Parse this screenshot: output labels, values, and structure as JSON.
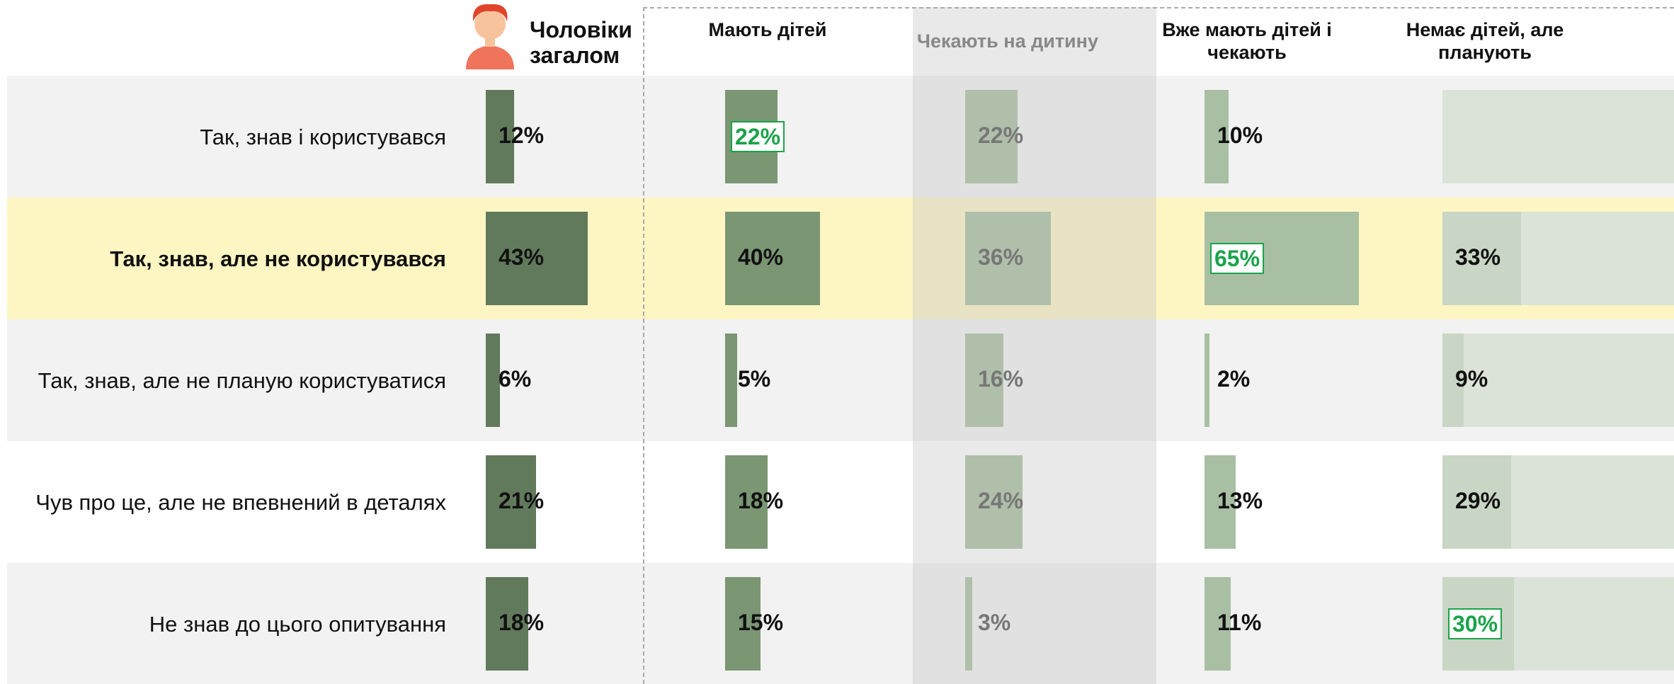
{
  "chart_data": {
    "type": "bar",
    "categories": [
      "Так, знав і користувався",
      "Так, знав, але не користувався",
      "Так, знав, але не планую користуватися",
      "Чув про це, але не впевнений в деталях",
      "Не знав до цього опитування"
    ],
    "highlight_row": 1,
    "muted_series": 2,
    "series": [
      {
        "name": "Чоловіки загалом",
        "color": "#627a5c",
        "values": [
          12,
          43,
          6,
          21,
          18
        ],
        "value_labels": [
          "12%",
          "43%",
          "6%",
          "21%",
          "18%"
        ]
      },
      {
        "name": "Мають дітей",
        "color": "#7a9673",
        "values": [
          22,
          40,
          5,
          18,
          15
        ],
        "value_labels": [
          "22%",
          "40%",
          "5%",
          "18%",
          "15%"
        ],
        "highlight": 0
      },
      {
        "name": "Чекають на дитину",
        "color": "#b0bfaa",
        "values": [
          22,
          36,
          16,
          24,
          3
        ],
        "value_labels": [
          "22%",
          "36%",
          "16%",
          "24%",
          "3%"
        ]
      },
      {
        "name": "Вже мають дітей і чекають",
        "color": "#a8bfa3",
        "values": [
          10,
          65,
          2,
          13,
          11
        ],
        "value_labels": [
          "10%",
          "65%",
          "2%",
          "13%",
          "11%"
        ],
        "highlight": 1
      },
      {
        "name": "Немає дітей, але планують",
        "color": "#c9d6c5",
        "values": [
          null,
          33,
          9,
          29,
          30
        ],
        "value_labels": [
          null,
          "33%",
          "9%",
          "29%",
          "30%"
        ],
        "highlight": 4
      }
    ]
  }
}
